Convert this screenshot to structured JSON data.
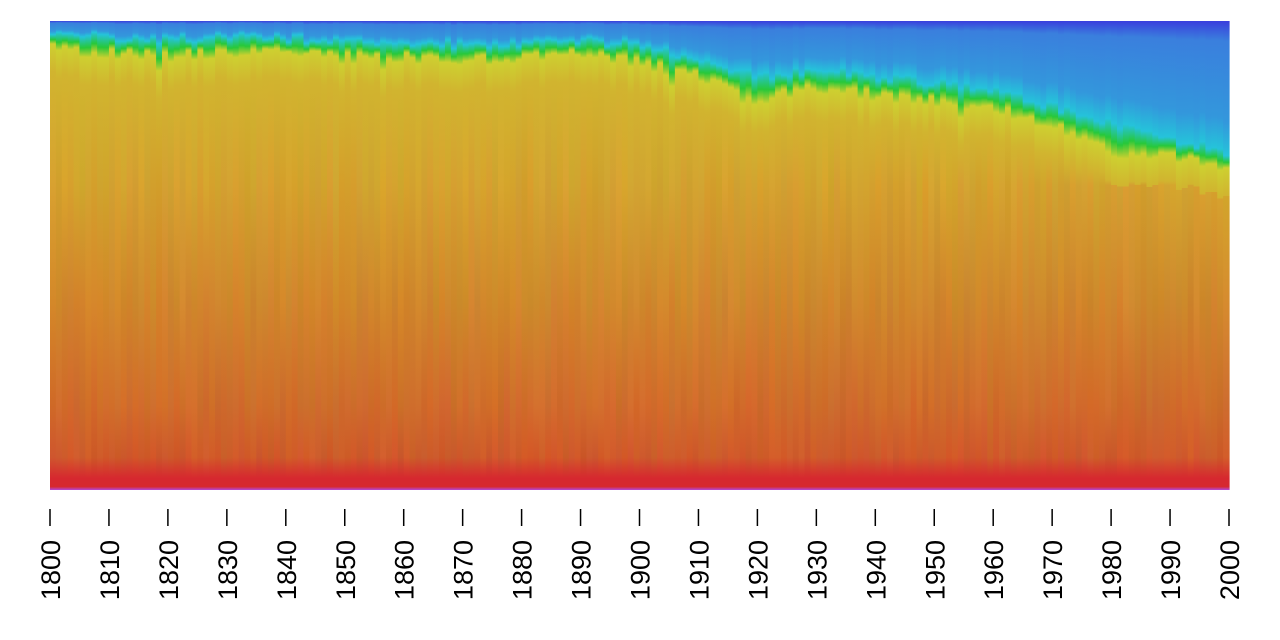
{
  "chart_data": {
    "type": "heatmap",
    "title": "",
    "xlabel": "",
    "ylabel": "",
    "x_range": [
      1800,
      2000
    ],
    "x_ticks": [
      "1800",
      "1810",
      "1820",
      "1830",
      "1840",
      "1850",
      "1860",
      "1870",
      "1880",
      "1890",
      "1900",
      "1910",
      "1920",
      "1930",
      "1940",
      "1950",
      "1960",
      "1970",
      "1980",
      "1990",
      "2000"
    ],
    "x_tick_orientation": "vertical",
    "y_axis_shown": false,
    "grid": false,
    "legend": "none",
    "colormap": [
      "#d6282f",
      "#cf5a2a",
      "#d0862c",
      "#d4a22e",
      "#cdd030",
      "#27c83a",
      "#25c3da",
      "#3a7fdd",
      "#3a3edd",
      "#b348dd"
    ],
    "colormap_description": "rainbow: red at bottom, orange/yellow middle, green, cyan, blue at top",
    "boundary_series": [
      {
        "name": "",
        "x": [
          1800,
          1810,
          1820,
          1830,
          1840,
          1850,
          1860,
          1870,
          1880,
          1890,
          1900,
          1910,
          1920,
          1930,
          1940,
          1950,
          1960,
          1970,
          1980,
          1990,
          2000
        ],
        "values": [
          0.06,
          0.07,
          0.075,
          0.07,
          0.065,
          0.08,
          0.08,
          0.085,
          0.08,
          0.07,
          0.09,
          0.12,
          0.17,
          0.14,
          0.16,
          0.17,
          0.19,
          0.22,
          0.28,
          0.29,
          0.31
        ]
      },
      {
        "name": "",
        "x": [
          1800,
          1810,
          1820,
          1830,
          1840,
          1850,
          1860,
          1870,
          1880,
          1890,
          1900,
          1910,
          1920,
          1930,
          1940,
          1950,
          1960,
          1970,
          1980,
          1990,
          2000
        ],
        "values": [
          0.03,
          0.035,
          0.04,
          0.035,
          0.035,
          0.045,
          0.045,
          0.05,
          0.045,
          0.04,
          0.05,
          0.08,
          0.12,
          0.1,
          0.12,
          0.13,
          0.15,
          0.18,
          0.22,
          0.25,
          0.28
        ]
      }
    ]
  }
}
